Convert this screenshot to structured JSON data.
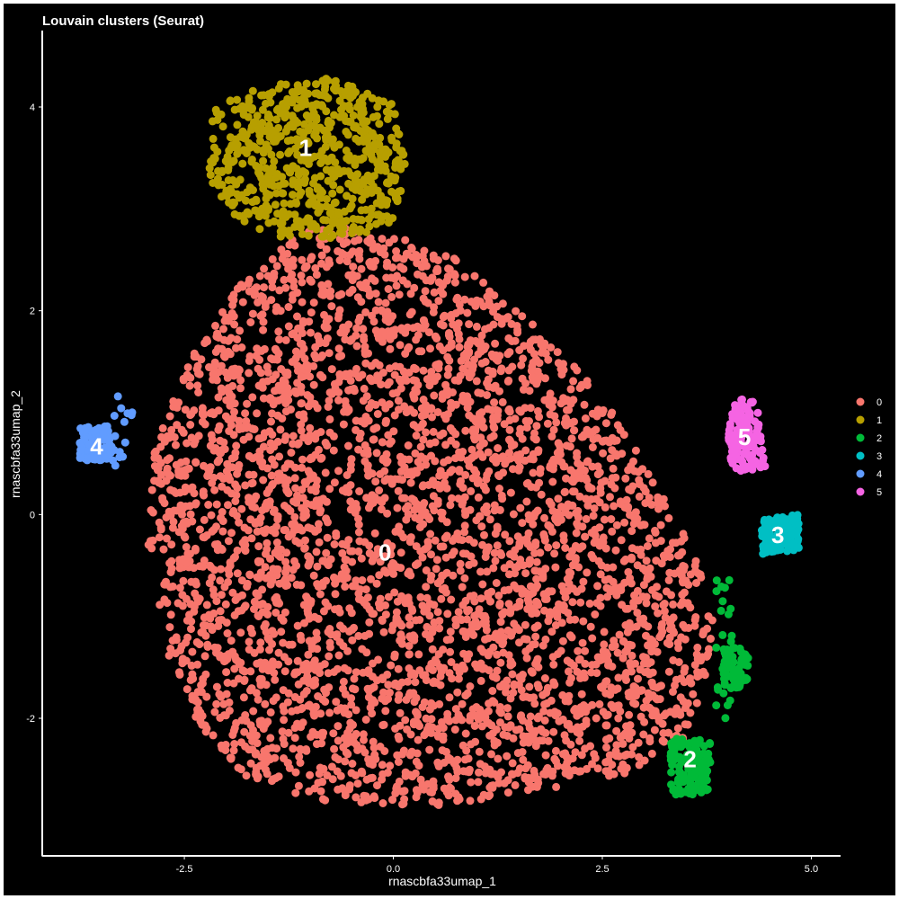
{
  "chart_data": {
    "type": "scatter",
    "title": "Louvain clusters (Seurat)",
    "xlabel": "rnascbfa33umap_1",
    "ylabel": "rnascbfa33umap_2",
    "xlim": [
      -4.2,
      5.35
    ],
    "ylim": [
      -3.35,
      4.75
    ],
    "xticks": [
      -2.5,
      0.0,
      2.5,
      5.0
    ],
    "xtick_labels": [
      "-2.5",
      "0.0",
      "2.5",
      "5.0"
    ],
    "yticks": [
      -2,
      0,
      2,
      4
    ],
    "ytick_labels": [
      "-2",
      "0",
      "2",
      "4"
    ],
    "grid": false,
    "legend_position": "right",
    "background": "#000000",
    "foreground": "#ffffff",
    "series": [
      {
        "name": "0",
        "color": "#F8766D",
        "label_pos": [
          -0.1,
          -0.37
        ],
        "regions": [
          {
            "poly": [
              [
                -0.8,
                2.9
              ],
              [
                0.6,
                2.6
              ],
              [
                1.6,
                1.95
              ],
              [
                2.35,
                1.3
              ],
              [
                2.75,
                0.85
              ],
              [
                3.15,
                0.3
              ],
              [
                3.55,
                -0.3
              ],
              [
                3.85,
                -0.9
              ],
              [
                3.75,
                -1.55
              ],
              [
                3.55,
                -2.2
              ],
              [
                2.8,
                -2.55
              ],
              [
                1.5,
                -2.75
              ],
              [
                0.3,
                -2.88
              ],
              [
                -0.9,
                -2.82
              ],
              [
                -1.8,
                -2.55
              ],
              [
                -2.3,
                -2.1
              ],
              [
                -2.65,
                -1.5
              ],
              [
                -2.85,
                -0.8
              ],
              [
                -2.95,
                -0.2
              ],
              [
                -2.9,
                0.5
              ],
              [
                -2.7,
                1.0
              ],
              [
                -2.35,
                1.65
              ],
              [
                -1.9,
                2.2
              ],
              [
                -1.3,
                2.65
              ]
            ],
            "count": 3800,
            "r": 4.5
          }
        ]
      },
      {
        "name": "1",
        "color": "#B79F00",
        "label_pos": [
          -1.05,
          3.6
        ],
        "regions": [
          {
            "poly": [
              [
                -2.2,
                4.0
              ],
              [
                -1.6,
                4.2
              ],
              [
                -0.8,
                4.3
              ],
              [
                0.0,
                4.05
              ],
              [
                0.15,
                3.5
              ],
              [
                0.05,
                2.9
              ],
              [
                -0.5,
                2.7
              ],
              [
                -1.3,
                2.7
              ],
              [
                -1.9,
                2.9
              ],
              [
                -2.2,
                3.3
              ]
            ],
            "count": 650,
            "r": 4.5
          }
        ]
      },
      {
        "name": "2",
        "color": "#00BA38",
        "label_pos": [
          3.55,
          -2.4
        ],
        "regions": [
          {
            "poly": [
              [
                3.3,
                -2.2
              ],
              [
                3.8,
                -2.2
              ],
              [
                3.78,
                -2.75
              ],
              [
                3.32,
                -2.75
              ]
            ],
            "count": 130,
            "r": 4.5
          },
          {
            "poly": [
              [
                3.95,
                -1.3
              ],
              [
                4.25,
                -1.3
              ],
              [
                4.25,
                -1.72
              ],
              [
                3.95,
                -1.72
              ]
            ],
            "count": 60,
            "r": 4.5
          },
          {
            "poly": [
              [
                3.85,
                -0.6
              ],
              [
                4.05,
                -0.6
              ],
              [
                4.05,
                -2.1
              ],
              [
                3.85,
                -2.1
              ]
            ],
            "count": 25,
            "r": 4.5
          }
        ]
      },
      {
        "name": "3",
        "color": "#00BFC4",
        "label_pos": [
          4.6,
          -0.2
        ],
        "regions": [
          {
            "poly": [
              [
                4.4,
                -0.05
              ],
              [
                4.85,
                0.0
              ],
              [
                4.85,
                -0.35
              ],
              [
                4.4,
                -0.4
              ]
            ],
            "count": 120,
            "r": 4.5
          }
        ]
      },
      {
        "name": "4",
        "color": "#619CFF",
        "label_pos": [
          -3.55,
          0.67
        ],
        "regions": [
          {
            "poly": [
              [
                -3.75,
                0.85
              ],
              [
                -3.4,
                0.88
              ],
              [
                -3.35,
                0.52
              ],
              [
                -3.75,
                0.52
              ]
            ],
            "count": 90,
            "r": 4.5
          },
          {
            "poly": [
              [
                -3.4,
                1.2
              ],
              [
                -3.05,
                1.2
              ],
              [
                -3.05,
                0.4
              ],
              [
                -3.4,
                0.4
              ]
            ],
            "count": 15,
            "r": 4.5
          }
        ]
      },
      {
        "name": "5",
        "color": "#F564E3",
        "label_pos": [
          4.2,
          0.76
        ],
        "regions": [
          {
            "poly": [
              [
                4.1,
                1.15
              ],
              [
                4.35,
                1.1
              ],
              [
                4.45,
                0.45
              ],
              [
                4.05,
                0.4
              ],
              [
                4.0,
                0.85
              ]
            ],
            "count": 130,
            "r": 4.5
          }
        ]
      }
    ]
  }
}
